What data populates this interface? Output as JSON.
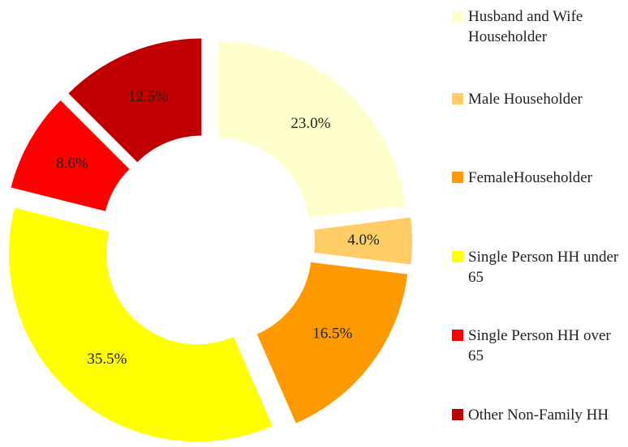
{
  "chart_data": {
    "type": "donut",
    "categories": [
      "Husband and Wife Householder",
      "Male Householder",
      "FemaleHouseholder",
      "Single Person HH under 65",
      "Single Person HH over 65",
      "Other Non-Family HH"
    ],
    "values": [
      23.0,
      4.0,
      16.5,
      35.5,
      8.6,
      12.5
    ],
    "value_labels": [
      "23.0%",
      "4.0%",
      "16.5%",
      "35.5%",
      "8.6%",
      "12.5%"
    ],
    "colors": [
      "#ffffcc",
      "#ffcc66",
      "#ff9900",
      "#ffff00",
      "#ff0000",
      "#c00000"
    ],
    "legend": "right"
  }
}
